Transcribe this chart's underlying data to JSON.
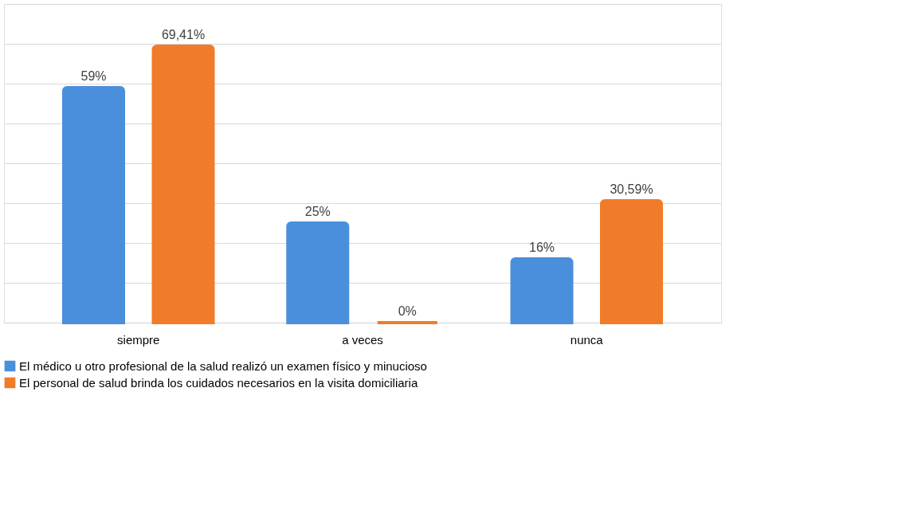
{
  "chart_data": {
    "type": "bar",
    "categories": [
      "siempre",
      "a veces",
      "nunca"
    ],
    "series": [
      {
        "name": "El médico u otro profesional de la salud realizó un examen físico y minucioso",
        "color": "#4a8fdc",
        "values": [
          59,
          25,
          16
        ],
        "value_labels": [
          "59%",
          "25%",
          "16%"
        ]
      },
      {
        "name": "El personal de salud brinda los cuidados necesarios en la visita domiciliaria",
        "color": "#f07c2a",
        "values": [
          69.41,
          0,
          30.59
        ],
        "value_labels": [
          "69,41%",
          "0%",
          "30,59%"
        ]
      }
    ],
    "ylim": [
      0,
      80
    ],
    "yticks": [
      {
        "value": 0,
        "label": null
      },
      {
        "value": 10,
        "label": null
      },
      {
        "value": 20,
        "label": null
      },
      {
        "value": 30,
        "label": null
      },
      {
        "value": 40,
        "label": null
      },
      {
        "value": 50,
        "label": null
      },
      {
        "value": 60,
        "label": null
      },
      {
        "value": 70,
        "label": null
      },
      {
        "value": 80,
        "label": null
      }
    ],
    "grid": "y",
    "tick_labels": "x",
    "legend": "bottom"
  }
}
